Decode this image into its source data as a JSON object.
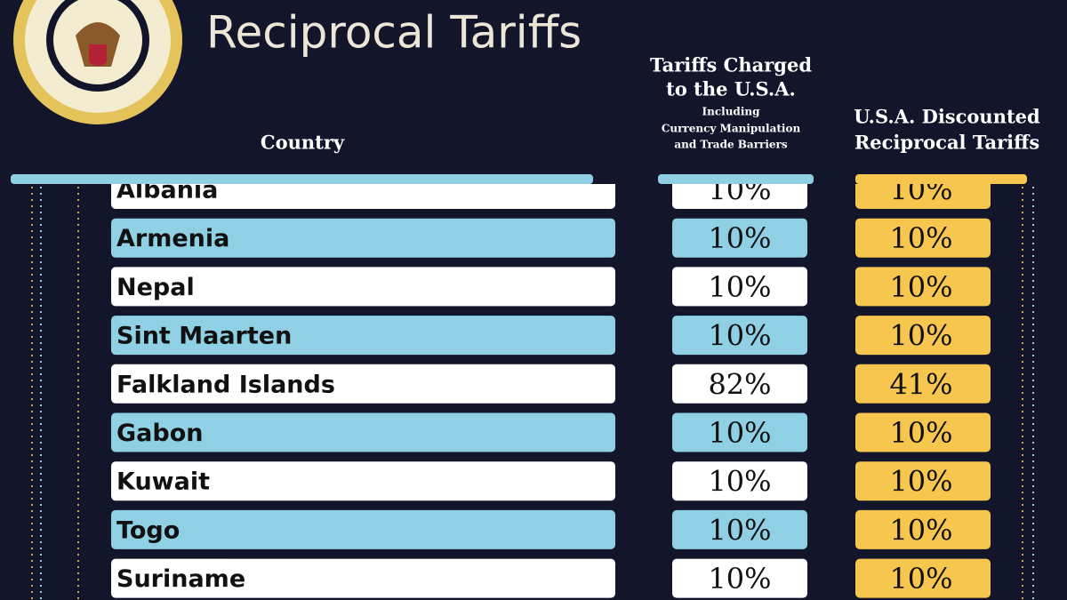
{
  "header": {
    "title": "Reciprocal Tariffs"
  },
  "table": {
    "columns": [
      {
        "lines": [
          "Country"
        ],
        "sub_lines": []
      },
      {
        "lines": [
          "Tariffs Charged",
          "to the U.S.A."
        ],
        "sub_lines": [
          "Including",
          "Currency Manipulation",
          "and Trade Barriers"
        ]
      },
      {
        "lines": [
          "U.S.A. Discounted",
          "Reciprocal Tariffs"
        ],
        "sub_lines": []
      }
    ],
    "rows": [
      [
        "Albania",
        "10%",
        "10%"
      ],
      [
        "Armenia",
        "10%",
        "10%"
      ],
      [
        "Nepal",
        "10%",
        "10%"
      ],
      [
        "Sint Maarten",
        "10%",
        "10%"
      ],
      [
        "Falkland Islands",
        "82%",
        "41%"
      ],
      [
        "Gabon",
        "10%",
        "10%"
      ],
      [
        "Kuwait",
        "10%",
        "10%"
      ],
      [
        "Togo",
        "10%",
        "10%"
      ],
      [
        "Suriname",
        "10%",
        "10%"
      ]
    ]
  }
}
